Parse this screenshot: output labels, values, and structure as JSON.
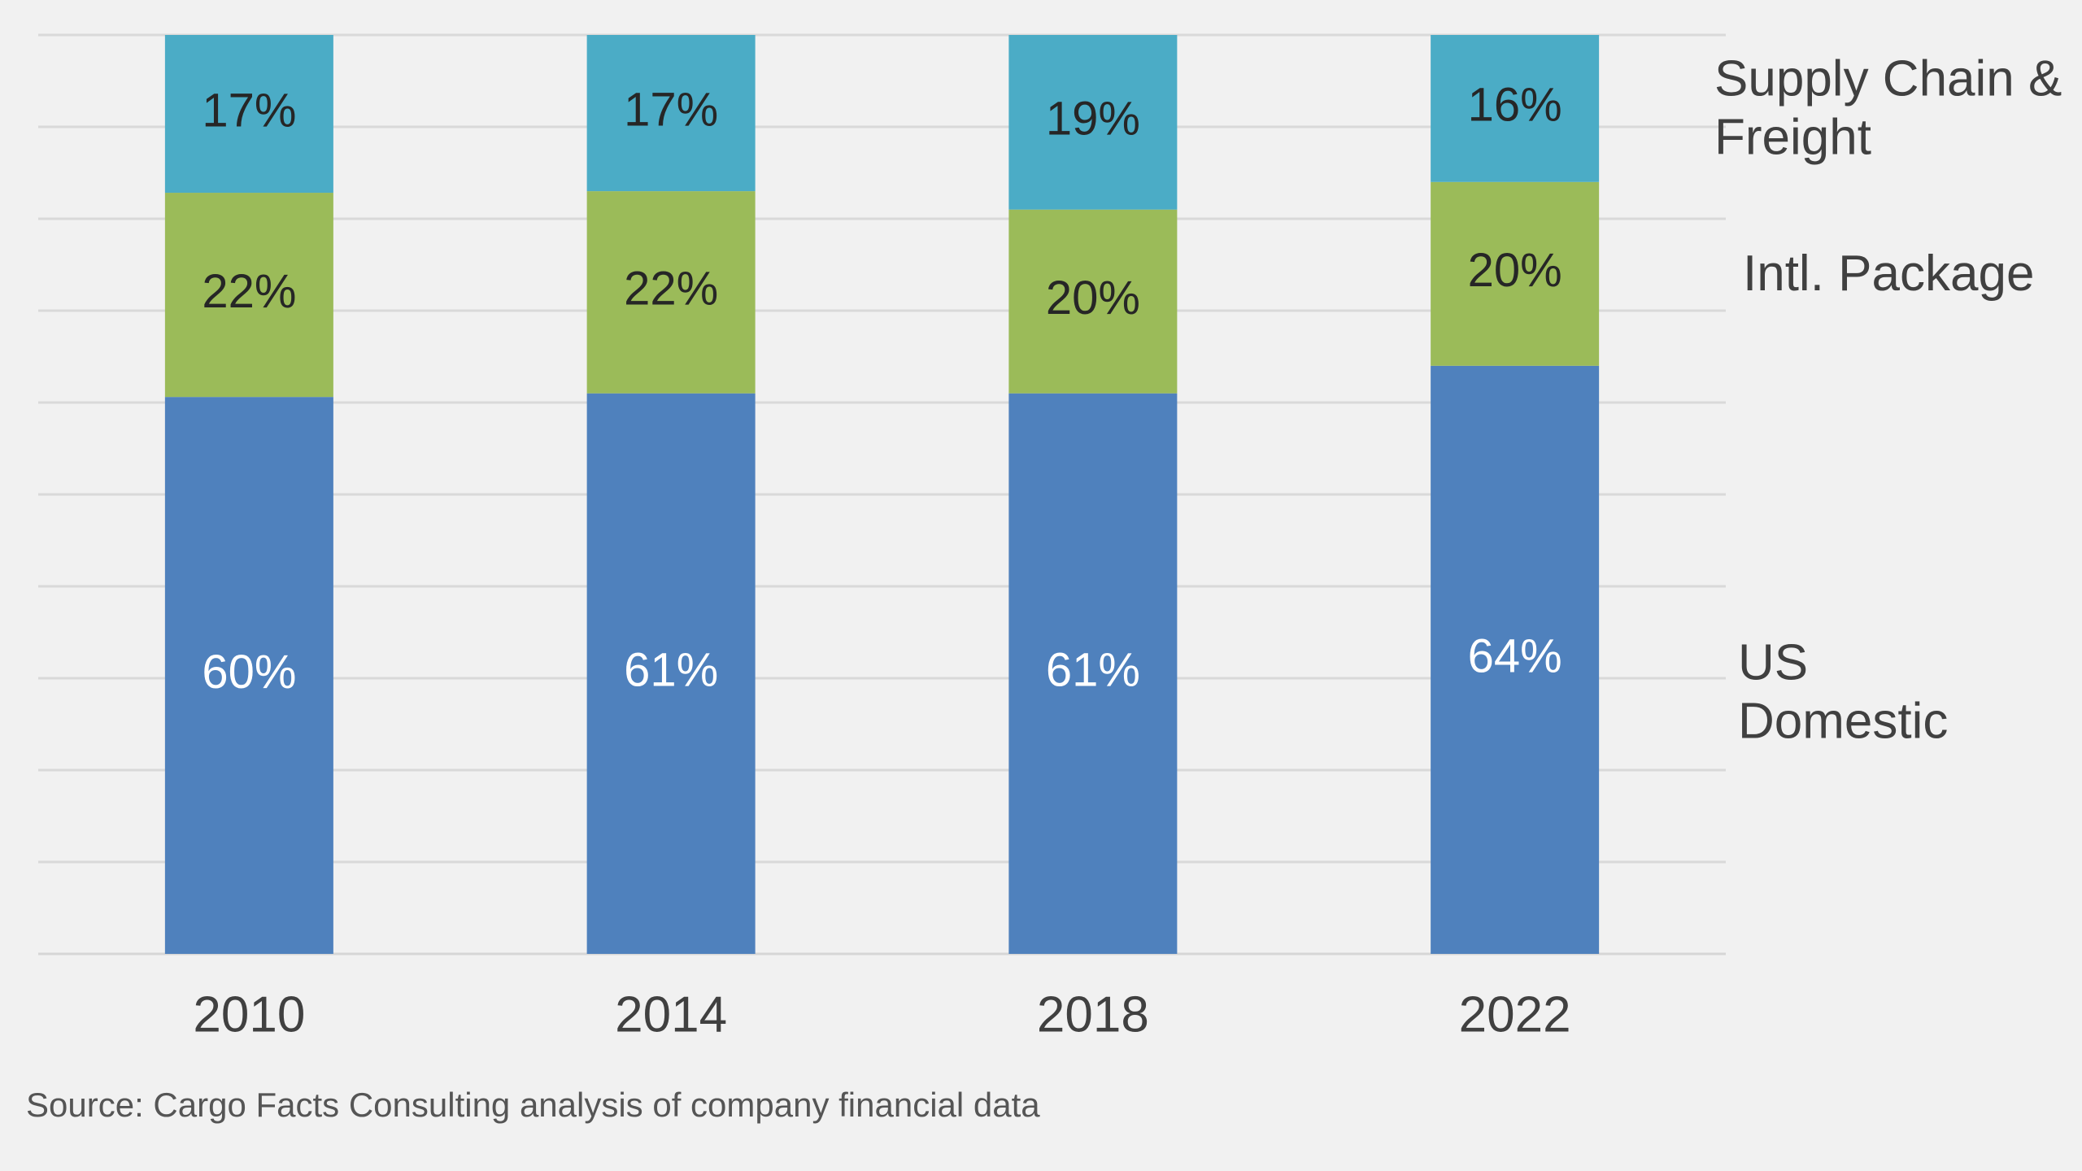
{
  "chart_data": {
    "type": "bar",
    "stacked": true,
    "categories": [
      "2010",
      "2014",
      "2018",
      "2022"
    ],
    "series": [
      {
        "name": "US Domestic",
        "values": [
          60,
          61,
          61,
          64
        ],
        "labels": [
          "60%",
          "61%",
          "61%",
          "64%"
        ],
        "color": "#4f81bd",
        "label_color": "#ffffff"
      },
      {
        "name": "Intl. Package",
        "values": [
          22,
          22,
          20,
          20
        ],
        "labels": [
          "22%",
          "22%",
          "20%",
          "20%"
        ],
        "color": "#9bbb59",
        "label_color": "#262626"
      },
      {
        "name": "Supply Chain & Freight",
        "values": [
          17,
          17,
          19,
          16
        ],
        "labels": [
          "17%",
          "17%",
          "19%",
          "16%"
        ],
        "color": "#4bacc6",
        "label_color": "#262626"
      }
    ],
    "legend": {
      "placement": "right",
      "entries": [
        {
          "series": "Supply Chain & Freight",
          "lines": [
            "Supply Chain &",
            "Freight"
          ]
        },
        {
          "series": "Intl. Package",
          "lines": [
            "Intl. Package"
          ]
        },
        {
          "series": "US Domestic",
          "lines": [
            "US",
            "Domestic"
          ]
        }
      ]
    },
    "ylim": [
      0,
      100
    ],
    "grid": true,
    "y_axis_labels_shown": false,
    "source": "Source: Cargo Facts Consulting analysis of company financial data"
  }
}
